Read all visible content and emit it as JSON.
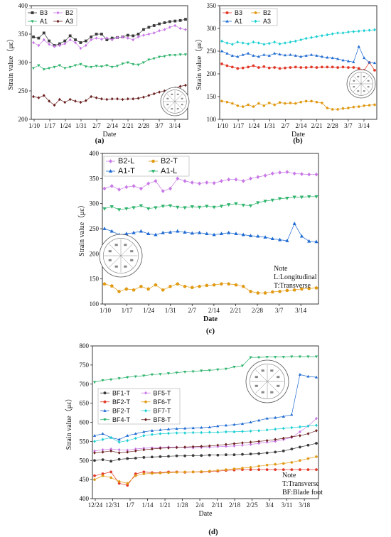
{
  "colors": {
    "B3": "#3a3a3a",
    "B2": "#c878e6",
    "A1": "#1e6ad2",
    "A3": "#1ccfd2",
    "A1_green": "#2db36b",
    "A3_brown": "#6b2020",
    "B3_red": "#e23a2a",
    "B2_orange": "#e09a14",
    "BF1": "#3a3a3a",
    "BF2": "#e23a2a",
    "BF3": "#1e6ad2",
    "BF4": "#2db36b",
    "BF5": "#c878e6",
    "BF6": "#e09a14",
    "BF7": "#1ccfd2",
    "BF8": "#6b2020"
  },
  "chart_data": [
    {
      "id": "a",
      "panel_label": "(a)",
      "type": "line",
      "xlabel": "Date",
      "ylabel": "Strain value（με）",
      "x_ticks": [
        "1/10",
        "1/17",
        "1/24",
        "1/31",
        "2/7",
        "2/14",
        "2/21",
        "2/28",
        "3/7",
        "3/14"
      ],
      "ylim": [
        200,
        400
      ],
      "y_ticks": [
        200,
        250,
        300,
        350,
        400
      ],
      "legend": [
        "B3",
        "B2",
        "A1",
        "A3"
      ],
      "series": [
        {
          "name": "B3",
          "color_key": "B3",
          "marker": "square",
          "values": [
            345,
            343,
            352,
            338,
            330,
            333,
            338,
            347,
            340,
            335,
            338,
            345,
            350,
            350,
            340,
            343,
            344,
            345,
            348,
            347,
            350,
            358,
            362,
            365,
            368,
            370,
            372,
            373,
            374,
            376
          ]
        },
        {
          "name": "B2",
          "color_key": "B2",
          "marker": "diamond",
          "values": [
            335,
            330,
            340,
            332,
            328,
            330,
            333,
            340,
            335,
            325,
            330,
            340,
            343,
            341,
            343,
            340,
            344,
            345,
            343,
            340,
            345,
            348,
            350,
            352,
            356,
            358,
            362,
            365,
            360,
            358
          ]
        },
        {
          "name": "A1",
          "color_key": "A1_green",
          "marker": "triangle-down",
          "values": [
            290,
            295,
            288,
            290,
            292,
            295,
            290,
            292,
            295,
            297,
            293,
            292,
            294,
            293,
            295,
            292,
            294,
            298,
            300,
            297,
            296,
            300,
            305,
            307,
            310,
            311,
            313,
            313,
            314,
            314
          ]
        },
        {
          "name": "A3",
          "color_key": "A3_brown",
          "marker": "diamond",
          "values": [
            240,
            238,
            242,
            232,
            225,
            235,
            230,
            235,
            232,
            230,
            233,
            240,
            238,
            236,
            235,
            236,
            236,
            235,
            236,
            236,
            237,
            239,
            242,
            245,
            248,
            250,
            252,
            255,
            258,
            260
          ]
        }
      ]
    },
    {
      "id": "b",
      "panel_label": "(b)",
      "type": "line",
      "xlabel": "Date",
      "ylabel": "Strain value（με）",
      "x_ticks": [
        "1/10",
        "1/17",
        "1/24",
        "1/31",
        "2/7",
        "2/14",
        "2/21",
        "2/28",
        "3/7",
        "3/14"
      ],
      "ylim": [
        100,
        350
      ],
      "y_ticks": [
        100,
        150,
        200,
        250,
        300,
        350
      ],
      "legend": [
        "B3",
        "B2",
        "A1",
        "A3"
      ],
      "series": [
        {
          "name": "B3",
          "color_key": "B3_red",
          "marker": "circle",
          "values": [
            222,
            218,
            215,
            212,
            213,
            215,
            218,
            214,
            216,
            213,
            214,
            212,
            213,
            214,
            215,
            214,
            214,
            215,
            214,
            215,
            215,
            215,
            214,
            215,
            214,
            214,
            212,
            208,
            225,
            208
          ]
        },
        {
          "name": "B2",
          "color_key": "B2_orange",
          "marker": "pentagon",
          "values": [
            140,
            138,
            135,
            130,
            128,
            132,
            128,
            135,
            130,
            136,
            132,
            137,
            135,
            136,
            135,
            138,
            140,
            140,
            138,
            136,
            125,
            122,
            122,
            124,
            125,
            127,
            128,
            130,
            131,
            132
          ]
        },
        {
          "name": "A1",
          "color_key": "A1",
          "marker": "triangle",
          "values": [
            250,
            245,
            240,
            238,
            242,
            245,
            240,
            238,
            242,
            240,
            245,
            243,
            241,
            242,
            240,
            238,
            240,
            242,
            240,
            238,
            236,
            235,
            233,
            230,
            228,
            226,
            260,
            235,
            225,
            224
          ]
        },
        {
          "name": "A3",
          "color_key": "A3",
          "marker": "diamond",
          "values": [
            272,
            268,
            265,
            270,
            268,
            266,
            270,
            268,
            265,
            267,
            270,
            266,
            268,
            270,
            272,
            275,
            278,
            280,
            282,
            284,
            286,
            288,
            290,
            290,
            292,
            293,
            294,
            295,
            296,
            297
          ]
        }
      ]
    },
    {
      "id": "c",
      "panel_label": "(c)",
      "type": "line",
      "xlabel": "Date",
      "ylabel": "Strain value（με）",
      "x_ticks": [
        "1/10",
        "1/17",
        "1/24",
        "1/31",
        "2/7",
        "2/14",
        "2/21",
        "2/28",
        "3/7",
        "3/14"
      ],
      "ylim": [
        100,
        400
      ],
      "y_ticks": [
        100,
        150,
        200,
        250,
        300,
        350,
        400
      ],
      "legend": [
        "B2-L",
        "B2-T",
        "A1-T",
        "A1-L"
      ],
      "note": [
        "Note",
        "L:Longitudinal",
        "T:Transverse"
      ],
      "series": [
        {
          "name": "B2-L",
          "color_key": "B2",
          "marker": "diamond",
          "values": [
            330,
            335,
            328,
            333,
            335,
            330,
            340,
            345,
            325,
            330,
            350,
            345,
            342,
            340,
            342,
            341,
            345,
            348,
            348,
            345,
            350,
            353,
            356,
            360,
            362,
            363,
            360,
            359,
            358,
            358
          ]
        },
        {
          "name": "B2-T",
          "color_key": "B2_orange",
          "marker": "pentagon",
          "values": [
            140,
            136,
            125,
            130,
            128,
            135,
            130,
            138,
            128,
            135,
            140,
            135,
            133,
            135,
            137,
            138,
            140,
            140,
            138,
            135,
            125,
            122,
            122,
            124,
            125,
            127,
            128,
            130,
            131,
            132
          ]
        },
        {
          "name": "A1-T",
          "color_key": "A1",
          "marker": "triangle",
          "values": [
            250,
            245,
            238,
            240,
            242,
            245,
            240,
            238,
            242,
            243,
            245,
            243,
            241,
            242,
            240,
            238,
            240,
            242,
            240,
            238,
            236,
            235,
            233,
            230,
            228,
            226,
            260,
            235,
            225,
            224
          ]
        },
        {
          "name": "A1-L",
          "color_key": "A1_green",
          "marker": "triangle-down",
          "values": [
            290,
            294,
            288,
            290,
            292,
            296,
            290,
            292,
            295,
            296,
            293,
            292,
            294,
            293,
            295,
            293,
            295,
            298,
            300,
            297,
            296,
            302,
            305,
            307,
            310,
            311,
            313,
            313,
            314,
            314
          ]
        }
      ]
    },
    {
      "id": "d",
      "panel_label": "(d)",
      "type": "line",
      "xlabel": "Date",
      "ylabel": "Strain value（με）",
      "x_ticks": [
        "12/24",
        "12/31",
        "1/7",
        "1/14",
        "1/21",
        "1/28",
        "2/4",
        "2/11",
        "2/18",
        "2/25",
        "3/4",
        "3/11",
        "3/18"
      ],
      "ylim": [
        400,
        800
      ],
      "y_ticks": [
        400,
        450,
        500,
        550,
        600,
        650,
        700,
        750,
        800
      ],
      "legend": [
        "BF1-T",
        "BF5-T",
        "BF2-T",
        "BF6-T",
        "BF2-T",
        "BF7-T",
        "BF4-T",
        "BF8-T"
      ],
      "note": [
        "Note",
        "T:Transverse",
        "BF:Blade foot"
      ],
      "series": [
        {
          "name": "BF1-T",
          "color_key": "BF1",
          "marker": "circle",
          "values": [
            500,
            502,
            498,
            503,
            505,
            506,
            508,
            509,
            510,
            511,
            512,
            512,
            513,
            513,
            514,
            514,
            515,
            515,
            516,
            517,
            518,
            520,
            522,
            525,
            530,
            535,
            540,
            545
          ]
        },
        {
          "name": "BF5-T",
          "color_key": "BF5",
          "marker": "diamond",
          "values": [
            525,
            528,
            530,
            528,
            527,
            530,
            532,
            533,
            534,
            535,
            535,
            534,
            533,
            534,
            535,
            536,
            537,
            538,
            540,
            542,
            545,
            548,
            550,
            555,
            560,
            575,
            590,
            610
          ]
        },
        {
          "name": "BF2-T",
          "color_key": "BF2",
          "marker": "circle",
          "values": [
            460,
            465,
            470,
            440,
            435,
            465,
            470,
            468,
            468,
            470,
            470,
            469,
            470,
            470,
            471,
            472,
            474,
            475,
            476,
            476,
            476,
            476,
            476,
            476,
            476,
            476,
            476,
            476
          ]
        },
        {
          "name": "BF6-T",
          "color_key": "BF6",
          "marker": "pentagon",
          "values": [
            450,
            460,
            455,
            445,
            440,
            460,
            465,
            466,
            467,
            468,
            469,
            470,
            470,
            471,
            472,
            474,
            476,
            478,
            480,
            482,
            485,
            488,
            490,
            492,
            495,
            500,
            505,
            510
          ]
        },
        {
          "name": "BF2-T",
          "color_key": "BF3",
          "marker": "triangle",
          "values": [
            565,
            570,
            560,
            555,
            565,
            570,
            575,
            578,
            580,
            582,
            583,
            584,
            585,
            586,
            587,
            590,
            592,
            594,
            596,
            600,
            605,
            610,
            612,
            615,
            620,
            725,
            720,
            718
          ]
        },
        {
          "name": "BF7-T",
          "color_key": "BF7",
          "marker": "diamond",
          "values": [
            550,
            555,
            560,
            548,
            552,
            558,
            565,
            568,
            570,
            571,
            572,
            572,
            573,
            573,
            574,
            574,
            575,
            575,
            576,
            577,
            578,
            580,
            582,
            584,
            586,
            588,
            590,
            592
          ]
        },
        {
          "name": "BF4-T",
          "color_key": "BF4",
          "marker": "triangle-down",
          "values": [
            705,
            710,
            712,
            715,
            718,
            720,
            722,
            725,
            726,
            728,
            730,
            732,
            733,
            735,
            736,
            738,
            740,
            745,
            748,
            770,
            770,
            771,
            771,
            771,
            772,
            772,
            772,
            772
          ]
        },
        {
          "name": "BF8-T",
          "color_key": "BF8",
          "marker": "diamond",
          "values": [
            520,
            522,
            525,
            520,
            522,
            525,
            528,
            530,
            532,
            533,
            534,
            535,
            536,
            537,
            538,
            540,
            542,
            544,
            546,
            548,
            550,
            552,
            555,
            558,
            562,
            565,
            570,
            578
          ]
        }
      ]
    }
  ]
}
